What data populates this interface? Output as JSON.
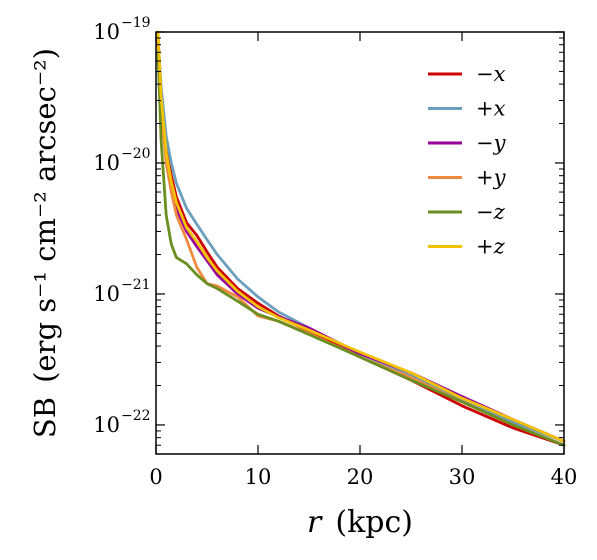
{
  "chart_data": {
    "type": "line",
    "xlabel": {
      "var": "r",
      "unit": "(kpc)"
    },
    "ylabel": {
      "main": "SB",
      "unit": "(erg s⁻¹ cm⁻² arcsec⁻²)"
    },
    "xlim": [
      0,
      40
    ],
    "ylim": [
      6e-23,
      1e-19
    ],
    "yscale": "log",
    "grid": false,
    "legend_position": "top-right",
    "xticks": [
      0,
      10,
      20,
      30,
      40
    ],
    "xtick_labels": [
      "0",
      "10",
      "20",
      "30",
      "40"
    ],
    "yticks": [
      1e-22,
      1e-21,
      1e-20,
      1e-19
    ],
    "ytick_labels": [
      {
        "base": "10",
        "exp": "−22"
      },
      {
        "base": "10",
        "exp": "−21"
      },
      {
        "base": "10",
        "exp": "−20"
      },
      {
        "base": "10",
        "exp": "−19"
      }
    ],
    "series": [
      {
        "name": "−x",
        "color": "#cc0000",
        "x": [
          0.2,
          0.5,
          1,
          1.5,
          2,
          3,
          4,
          5,
          6,
          8,
          10,
          12,
          15,
          20,
          25,
          30,
          35,
          40
        ],
        "y": [
          9e-20,
          3.5e-20,
          1.3e-20,
          8e-21,
          5.5e-21,
          3.5e-21,
          2.8e-21,
          2.1e-21,
          1.6e-21,
          1.1e-21,
          8.5e-22,
          6.8e-22,
          5.2e-22,
          3.3e-22,
          2.2e-22,
          1.4e-22,
          9.5e-23,
          7e-23
        ]
      },
      {
        "name": "+x",
        "color": "#6a9fbd",
        "x": [
          0.2,
          0.5,
          1,
          1.5,
          2,
          3,
          4,
          5,
          6,
          8,
          10,
          12,
          15,
          20,
          25,
          30,
          35,
          40
        ],
        "y": [
          9e-20,
          3.8e-20,
          1.6e-20,
          1e-20,
          7e-21,
          4.5e-21,
          3.4e-21,
          2.6e-21,
          2e-21,
          1.3e-21,
          9.5e-22,
          7.3e-22,
          5.5e-22,
          3.5e-22,
          2.4e-22,
          1.55e-22,
          1.05e-22,
          7.5e-23
        ]
      },
      {
        "name": "−y",
        "color": "#990099",
        "x": [
          0.2,
          0.5,
          1,
          1.5,
          2,
          3,
          4,
          5,
          6,
          8,
          10,
          12,
          15,
          20,
          25,
          30,
          35,
          40
        ],
        "y": [
          8.5e-20,
          3e-20,
          1.1e-20,
          6.5e-21,
          4.5e-21,
          3e-21,
          2.3e-21,
          1.8e-21,
          1.4e-21,
          1e-21,
          7.8e-22,
          6.7e-22,
          5.5e-22,
          3.5e-22,
          2.5e-22,
          1.65e-22,
          1.1e-22,
          7.5e-23
        ]
      },
      {
        "name": "+y",
        "color": "#f08a40",
        "x": [
          0.2,
          0.5,
          1,
          1.5,
          2,
          3,
          4,
          5,
          6,
          8,
          10,
          12,
          15,
          20,
          25,
          30,
          35,
          40
        ],
        "y": [
          8e-20,
          2.7e-20,
          1e-20,
          6e-21,
          4e-21,
          2.6e-21,
          1.6e-21,
          1.2e-21,
          1.15e-21,
          9.5e-22,
          6.8e-22,
          6.2e-22,
          5e-22,
          3.3e-22,
          2.3e-22,
          1.5e-22,
          1e-22,
          7e-23
        ]
      },
      {
        "name": "−z",
        "color": "#6a8f20",
        "x": [
          0.2,
          0.5,
          1,
          1.5,
          2,
          3,
          4,
          5,
          6,
          8,
          10,
          12,
          15,
          20,
          25,
          30,
          35,
          40
        ],
        "y": [
          7e-20,
          1.5e-20,
          4e-21,
          2.4e-21,
          1.9e-21,
          1.7e-21,
          1.4e-21,
          1.2e-21,
          1.1e-21,
          8.8e-22,
          7e-22,
          6.2e-22,
          4.9e-22,
          3.3e-22,
          2.2e-22,
          1.5e-22,
          1e-22,
          7e-23
        ]
      },
      {
        "name": "+z",
        "color": "#f2c200",
        "x": [
          0.2,
          0.5,
          1,
          1.5,
          2,
          3,
          4,
          5,
          6,
          8,
          10,
          12,
          15,
          20,
          25,
          30,
          35,
          40
        ],
        "y": [
          1e-19,
          3.2e-20,
          1.2e-20,
          7.2e-21,
          5e-21,
          3.2e-21,
          2.5e-21,
          1.9e-21,
          1.5e-21,
          1.05e-21,
          8e-22,
          6.6e-22,
          5.3e-22,
          3.6e-22,
          2.5e-22,
          1.6e-22,
          1.1e-22,
          7.5e-23
        ]
      }
    ]
  }
}
